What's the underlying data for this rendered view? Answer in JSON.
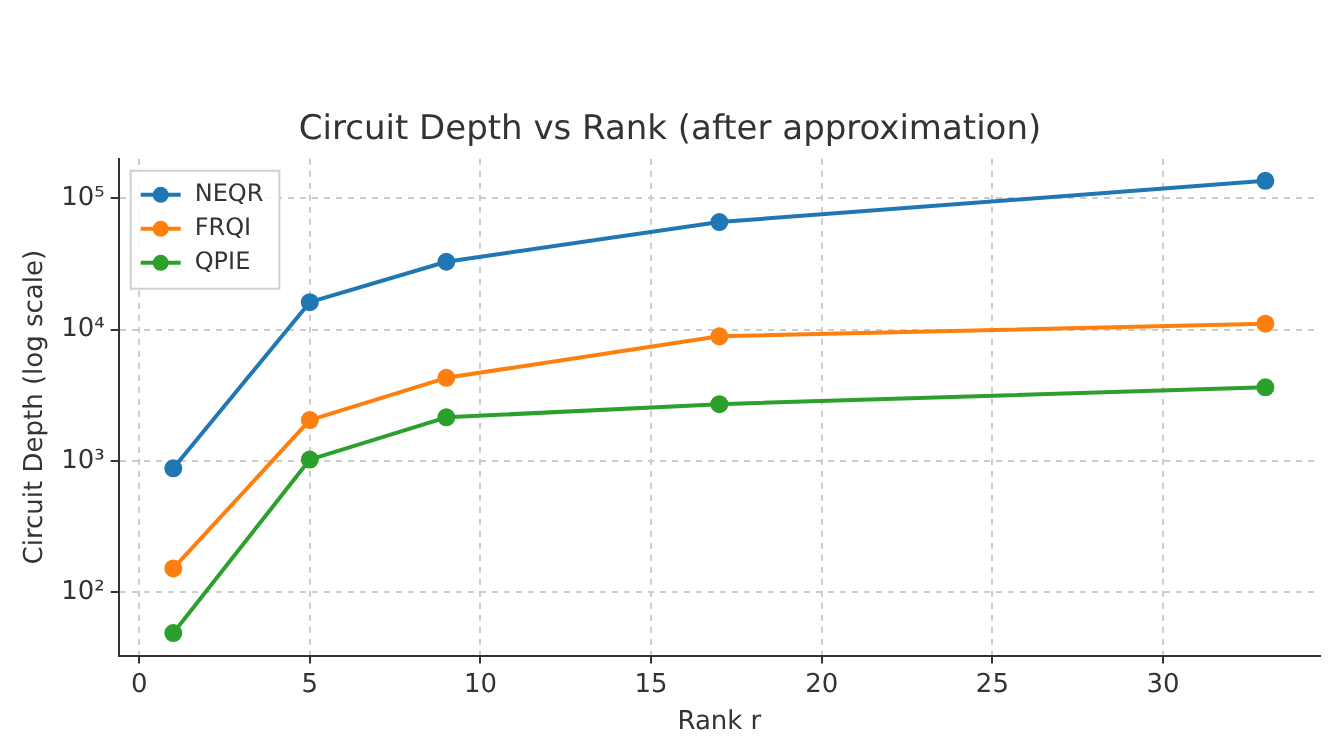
{
  "chart_data": {
    "type": "line",
    "title": "Circuit Depth vs Rank (after approximation)",
    "xlabel": "Rank r",
    "ylabel": "Circuit Depth (log scale)",
    "x": [
      1,
      5,
      9,
      17,
      33
    ],
    "series": [
      {
        "name": "NEQR",
        "color": "#1f77b4",
        "values": [
          880,
          16200,
          32900,
          66000,
          136000
        ]
      },
      {
        "name": "FRQI",
        "color": "#ff7f0e",
        "values": [
          152,
          2050,
          4300,
          8900,
          11100
        ]
      },
      {
        "name": "QPIE",
        "color": "#2ca02c",
        "values": [
          49,
          1025,
          2150,
          2710,
          3640
        ]
      }
    ],
    "log": "y",
    "xlim": [
      -0.6,
      34.6
    ],
    "xticks": [
      0,
      5,
      10,
      15,
      20,
      25,
      30
    ],
    "ylim": [
      33,
      200000
    ],
    "yticks": [
      {
        "value": 100,
        "label": "10²"
      },
      {
        "value": 1000,
        "label": "10³"
      },
      {
        "value": 10000,
        "label": "10⁴"
      },
      {
        "value": 100000,
        "label": "10⁵"
      }
    ],
    "grid": true,
    "legend": "top left",
    "marker": "circle",
    "line_style": "solid"
  }
}
